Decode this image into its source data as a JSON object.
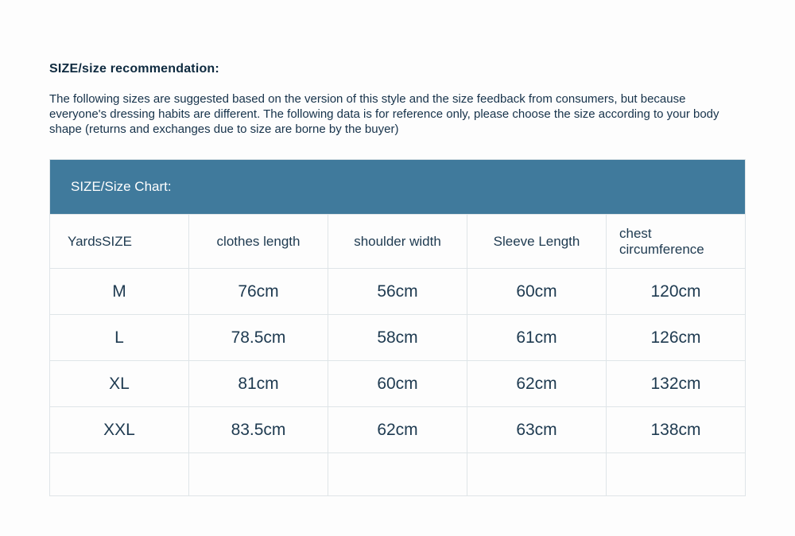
{
  "heading": "SIZE/size recommendation:",
  "description": "The following sizes are suggested based on the version of this style and the size feedback from consumers, but because everyone's dressing habits are different. The following data is for reference only, please choose the size according to your body shape (returns and exchanges due to size are borne by the buyer)",
  "chart": {
    "title": "SIZE/Size Chart:",
    "title_bg": "#407a9c",
    "title_color": "#ffffff",
    "border_color": "#dfe5e8",
    "text_color": "#1e3a50",
    "columns": [
      "YardsSIZE",
      "clothes length",
      "shoulder width",
      "Sleeve Length",
      "chest circumference"
    ],
    "rows": [
      [
        "M",
        "76cm",
        "56cm",
        "60cm",
        "120cm"
      ],
      [
        "L",
        "78.5cm",
        "58cm",
        "61cm",
        "126cm"
      ],
      [
        "XL",
        "81cm",
        "60cm",
        "62cm",
        "132cm"
      ],
      [
        "XXL",
        "83.5cm",
        "62cm",
        "63cm",
        "138cm"
      ],
      [
        "",
        "",
        "",
        "",
        ""
      ]
    ],
    "header_fontsize": 17,
    "cell_fontsize": 21
  },
  "background_color": "#fdfdfd"
}
